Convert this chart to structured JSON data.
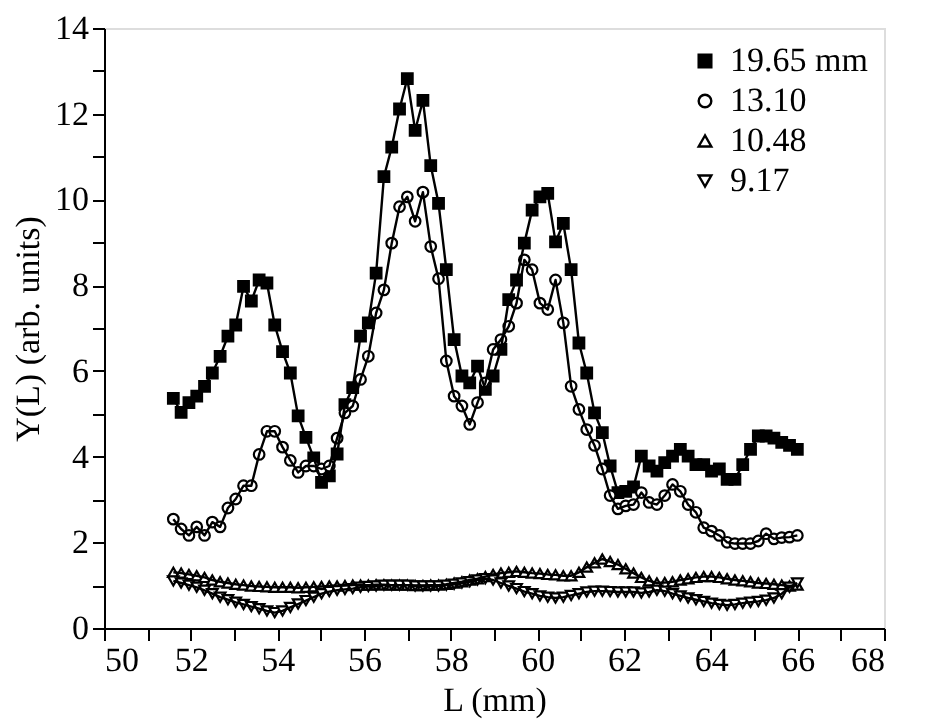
{
  "chart_data": {
    "type": "line",
    "xlabel": "L  (mm)",
    "ylabel": "Y(L)  (arb. units)",
    "xlim": [
      50,
      68
    ],
    "ylim": [
      0,
      14
    ],
    "xticks": [
      50,
      {
        "value": 51,
        "label": null
      },
      52,
      {
        "value": 53,
        "label": null
      },
      54,
      {
        "value": 55,
        "label": null
      },
      56,
      {
        "value": 57,
        "label": null
      },
      58,
      {
        "value": 59,
        "label": null
      },
      60,
      {
        "value": 61,
        "label": null
      },
      62,
      {
        "value": 63,
        "label": null
      },
      64,
      {
        "value": 65,
        "label": null
      },
      66,
      {
        "value": 67,
        "label": null
      },
      68
    ],
    "yticks": [
      0,
      {
        "value": 1,
        "label": null
      },
      2,
      {
        "value": 3,
        "label": null
      },
      4,
      {
        "value": 5,
        "label": null
      },
      6,
      {
        "value": 7,
        "label": null
      },
      8,
      {
        "value": 9,
        "label": null
      },
      10,
      {
        "value": 11,
        "label": null
      },
      12,
      {
        "value": 13,
        "label": null
      },
      14
    ],
    "x": [
      51.6,
      51.78,
      51.96,
      52.14,
      52.32,
      52.5,
      52.68,
      52.86,
      53.04,
      53.22,
      53.4,
      53.58,
      53.76,
      53.94,
      54.12,
      54.3,
      54.48,
      54.66,
      54.84,
      55.02,
      55.2,
      55.38,
      55.56,
      55.74,
      55.92,
      56.1,
      56.28,
      56.46,
      56.64,
      56.82,
      57.0,
      57.18,
      57.36,
      57.54,
      57.72,
      57.9,
      58.08,
      58.26,
      58.44,
      58.62,
      58.8,
      58.98,
      59.16,
      59.34,
      59.52,
      59.7,
      59.88,
      60.06,
      60.24,
      60.42,
      60.6,
      60.78,
      60.96,
      61.14,
      61.32,
      61.5,
      61.68,
      61.86,
      62.04,
      62.22,
      62.4,
      62.58,
      62.76,
      62.94,
      63.12,
      63.3,
      63.48,
      63.66,
      63.84,
      64.02,
      64.2,
      64.38,
      64.56,
      64.74,
      64.92,
      65.1,
      65.28,
      65.46,
      65.64,
      65.82,
      66.0
    ],
    "legend": "top right",
    "line_style": "solid",
    "series": [
      {
        "name": "19.65 mm",
        "color": "#000000",
        "marker": "square",
        "values": [
          5.36,
          5.03,
          5.26,
          5.41,
          5.64,
          5.95,
          6.34,
          6.81,
          7.07,
          7.97,
          7.63,
          8.12,
          8.05,
          7.07,
          6.45,
          5.95,
          4.95,
          4.45,
          3.97,
          3.4,
          3.55,
          4.06,
          5.21,
          5.61,
          6.81,
          7.12,
          8.28,
          10.53,
          11.22,
          12.11,
          12.82,
          11.61,
          12.31,
          10.79,
          9.91,
          8.36,
          6.73,
          5.88,
          5.72,
          6.11,
          5.57,
          5.88,
          6.5,
          7.66,
          8.12,
          8.98,
          9.75,
          10.06,
          10.14,
          9.01,
          9.44,
          8.36,
          6.65,
          5.95,
          5.02,
          4.56,
          3.78,
          3.16,
          3.19,
          3.29,
          4.01,
          3.78,
          3.66,
          3.86,
          4.01,
          4.17,
          4.01,
          3.81,
          3.81,
          3.66,
          3.71,
          3.47,
          3.47,
          3.81,
          4.17,
          4.48,
          4.48,
          4.43,
          4.33,
          4.26,
          4.17
        ]
      },
      {
        "name": "13.10",
        "color": "#000000",
        "marker": "circle",
        "values": [
          2.54,
          2.31,
          2.16,
          2.36,
          2.16,
          2.47,
          2.36,
          2.8,
          3.01,
          3.32,
          3.32,
          4.05,
          4.59,
          4.59,
          4.22,
          3.91,
          3.63,
          3.78,
          3.78,
          3.71,
          3.78,
          4.43,
          5.02,
          5.18,
          5.8,
          6.34,
          7.35,
          7.89,
          8.98,
          9.83,
          10.06,
          9.49,
          10.17,
          8.9,
          8.15,
          6.23,
          5.41,
          5.18,
          4.75,
          5.26,
          5.72,
          6.5,
          6.73,
          7.04,
          7.58,
          8.59,
          8.36,
          7.58,
          7.43,
          8.12,
          7.12,
          5.64,
          5.1,
          4.63,
          4.26,
          3.71,
          3.09,
          2.78,
          2.85,
          2.88,
          3.16,
          2.93,
          2.88,
          3.09,
          3.35,
          3.19,
          2.88,
          2.7,
          2.34,
          2.26,
          2.16,
          2.0,
          1.97,
          1.97,
          1.97,
          2.03,
          2.2,
          2.08,
          2.11,
          2.12,
          2.16
        ]
      },
      {
        "name": "10.48",
        "color": "#000000",
        "marker": "triangle",
        "values": [
          1.3,
          1.28,
          1.25,
          1.22,
          1.18,
          1.12,
          1.08,
          1.05,
          1.02,
          1.0,
          0.98,
          0.97,
          0.96,
          0.95,
          0.95,
          0.95,
          0.94,
          0.95,
          0.96,
          0.97,
          0.98,
          0.98,
          0.99,
          1.0,
          1.0,
          1.0,
          1.01,
          1.01,
          1.0,
          1.0,
          1.0,
          0.99,
          0.99,
          1.0,
          1.0,
          1.02,
          1.05,
          1.08,
          1.12,
          1.15,
          1.2,
          1.25,
          1.28,
          1.3,
          1.32,
          1.3,
          1.28,
          1.27,
          1.25,
          1.24,
          1.22,
          1.22,
          1.3,
          1.42,
          1.52,
          1.61,
          1.55,
          1.48,
          1.38,
          1.28,
          1.18,
          1.1,
          1.05,
          1.06,
          1.08,
          1.12,
          1.15,
          1.18,
          1.2,
          1.2,
          1.18,
          1.15,
          1.12,
          1.1,
          1.08,
          1.05,
          1.04,
          1.02,
          1.0,
          0.98,
          1.0
        ]
      },
      {
        "name": "9.17",
        "color": "#000000",
        "marker": "triangle-down",
        "values": [
          1.1,
          1.05,
          1.0,
          0.95,
          0.88,
          0.8,
          0.72,
          0.66,
          0.6,
          0.55,
          0.5,
          0.45,
          0.4,
          0.36,
          0.4,
          0.48,
          0.56,
          0.64,
          0.72,
          0.8,
          0.85,
          0.88,
          0.9,
          0.92,
          0.95,
          0.97,
          0.98,
          1.0,
          1.0,
          1.0,
          1.0,
          0.98,
          0.98,
          0.98,
          0.98,
          1.0,
          1.02,
          1.05,
          1.08,
          1.12,
          1.15,
          1.12,
          1.05,
          0.98,
          0.92,
          0.85,
          0.8,
          0.75,
          0.72,
          0.7,
          0.72,
          0.76,
          0.8,
          0.84,
          0.86,
          0.86,
          0.85,
          0.84,
          0.84,
          0.84,
          0.82,
          0.84,
          0.88,
          0.86,
          0.8,
          0.75,
          0.7,
          0.66,
          0.62,
          0.58,
          0.55,
          0.53,
          0.55,
          0.58,
          0.6,
          0.62,
          0.65,
          0.7,
          0.8,
          0.95,
          1.05
        ]
      }
    ]
  }
}
